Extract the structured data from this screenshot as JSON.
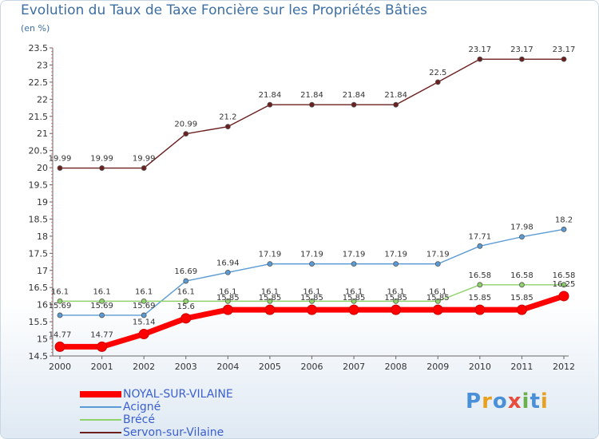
{
  "title": "Evolution du Taux de Taxe Foncière sur les Propriétés Bâties",
  "unit": "(en %)",
  "logo": {
    "text": "Proxiti",
    "letters": [
      {
        "ch": "P",
        "color": "#4a90d9"
      },
      {
        "ch": "r",
        "color": "#e8a020"
      },
      {
        "ch": "o",
        "color": "#4a90d9"
      },
      {
        "ch": "x",
        "color": "#e84c3d"
      },
      {
        "ch": "i",
        "color": "#6ab04c"
      },
      {
        "ch": "t",
        "color": "#4a90d9"
      },
      {
        "ch": "i",
        "color": "#e8a020"
      }
    ]
  },
  "chart_data": {
    "type": "line",
    "title": "Evolution du Taux de Taxe Foncière sur les Propriétés Bâties",
    "ylabel": "(en %)",
    "xlabel": "",
    "ylim": [
      14.5,
      23.5
    ],
    "yticks": [
      "14.5",
      "15",
      "15.5",
      "16",
      "16.5",
      "17",
      "17.5",
      "18",
      "18.5",
      "19",
      "19.5",
      "20",
      "20.5",
      "21",
      "21.5",
      "22",
      "22.5",
      "23",
      "23.5"
    ],
    "categories": [
      "2000",
      "2001",
      "2002",
      "2003",
      "2004",
      "2005",
      "2006",
      "2007",
      "2008",
      "2009",
      "2010",
      "2011",
      "2012"
    ],
    "legend_position": "bottom-left",
    "grid": false,
    "series": [
      {
        "name": "NOYAL-SUR-VILAINE",
        "color": "#ff0000",
        "values": [
          14.77,
          14.77,
          15.14,
          15.6,
          15.85,
          15.85,
          15.85,
          15.85,
          15.85,
          15.85,
          15.85,
          15.85,
          16.25
        ]
      },
      {
        "name": "Acigné",
        "color": "#5b9bd5",
        "values": [
          15.69,
          15.69,
          15.69,
          16.69,
          16.94,
          17.19,
          17.19,
          17.19,
          17.19,
          17.19,
          17.71,
          17.98,
          18.2
        ]
      },
      {
        "name": "Brécé",
        "color": "#8fd16a",
        "values": [
          16.1,
          16.1,
          16.1,
          16.1,
          16.1,
          16.1,
          16.1,
          16.1,
          16.1,
          16.1,
          16.58,
          16.58,
          16.58
        ]
      },
      {
        "name": "Servon-sur-Vilaine",
        "color": "#6b1f1f",
        "values": [
          19.99,
          19.99,
          19.99,
          20.99,
          21.2,
          21.84,
          21.84,
          21.84,
          21.84,
          22.5,
          23.17,
          23.17,
          23.17
        ]
      }
    ]
  }
}
